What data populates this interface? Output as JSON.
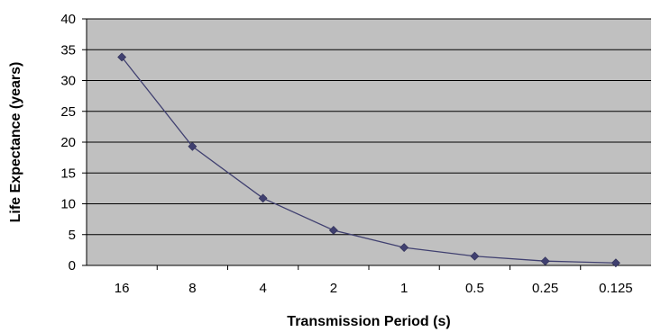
{
  "chart_data": {
    "type": "line",
    "title": "",
    "xlabel": "Transmission Period (s)",
    "ylabel": "Life Expectance (years)",
    "categories": [
      "16",
      "8",
      "4",
      "2",
      "1",
      "0.5",
      "0.25",
      "0.125"
    ],
    "series": [
      {
        "values": [
          33.8,
          19.3,
          10.9,
          5.7,
          2.9,
          1.5,
          0.7,
          0.4
        ]
      }
    ],
    "ylim": [
      0,
      40
    ],
    "yticks": [
      "0",
      "5",
      "10",
      "15",
      "20",
      "25",
      "30",
      "35",
      "40"
    ],
    "grid": true,
    "legend": "none",
    "colors": {
      "plot_background": "#c0c0c0",
      "gridline": "#000000",
      "series_line": "#404070",
      "marker": "#404070"
    }
  }
}
